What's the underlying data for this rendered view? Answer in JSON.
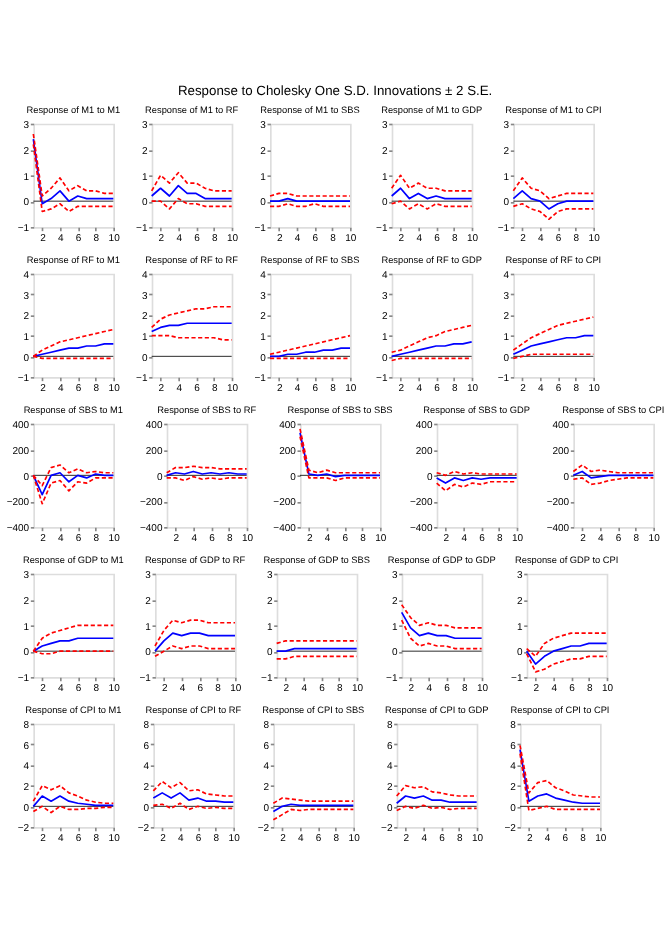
{
  "chart_data": [
    {
      "type": "line",
      "title": "Response of M1 to M1",
      "annotations": [
        "Response to Cholesky One S.D. Innovations ± 2 S.E."
      ],
      "x": [
        1,
        2,
        3,
        4,
        5,
        6,
        7,
        8,
        9,
        10
      ],
      "xlim": [
        1,
        10
      ],
      "xticks": [
        2,
        4,
        6,
        8,
        10
      ],
      "ylim": [
        -1,
        3
      ],
      "yticks": [
        -1,
        0,
        1,
        2,
        3
      ],
      "ref_lines": [
        {
          "axis": "y",
          "value": 0,
          "color": "#000000"
        }
      ],
      "series": [
        {
          "color": "#0000ff",
          "line_style": "solid",
          "values": [
            2.4,
            -0.1,
            0.1,
            0.4,
            0,
            0.2,
            0.1,
            0.1,
            0.1,
            0.1
          ]
        },
        {
          "color": "#ff0000",
          "line_style": "dashed",
          "values": [
            2.6,
            0.2,
            0.5,
            0.9,
            0.4,
            0.6,
            0.4,
            0.4,
            0.3,
            0.3
          ]
        },
        {
          "color": "#ff0000",
          "line_style": "dashed",
          "values": [
            2.2,
            -0.4,
            -0.3,
            -0.1,
            -0.4,
            -0.2,
            -0.2,
            -0.2,
            -0.2,
            -0.2
          ]
        }
      ]
    },
    {
      "type": "line",
      "title": "Response of M1 to RF",
      "x": [
        1,
        2,
        3,
        4,
        5,
        6,
        7,
        8,
        9,
        10
      ],
      "xlim": [
        1,
        10
      ],
      "xticks": [
        2,
        4,
        6,
        8,
        10
      ],
      "ylim": [
        -1,
        3
      ],
      "yticks": [
        -1,
        0,
        1,
        2,
        3
      ],
      "ref_lines": [
        {
          "axis": "y",
          "value": 0,
          "color": "#000000"
        }
      ],
      "series": [
        {
          "color": "#0000ff",
          "line_style": "solid",
          "values": [
            0.2,
            0.5,
            0.2,
            0.6,
            0.3,
            0.3,
            0.1,
            0.1,
            0.1,
            0.1
          ]
        },
        {
          "color": "#ff0000",
          "line_style": "dashed",
          "values": [
            0.4,
            1.0,
            0.7,
            1.1,
            0.7,
            0.7,
            0.5,
            0.4,
            0.4,
            0.4
          ]
        },
        {
          "color": "#ff0000",
          "line_style": "dashed",
          "values": [
            0,
            0,
            -0.3,
            0.1,
            -0.1,
            -0.1,
            -0.2,
            -0.2,
            -0.2,
            -0.2
          ]
        }
      ]
    },
    {
      "type": "line",
      "title": "Response of M1 to SBS",
      "x": [
        1,
        2,
        3,
        4,
        5,
        6,
        7,
        8,
        9,
        10
      ],
      "xlim": [
        1,
        10
      ],
      "xticks": [
        2,
        4,
        6,
        8,
        10
      ],
      "ylim": [
        -1,
        3
      ],
      "yticks": [
        -1,
        0,
        1,
        2,
        3
      ],
      "ref_lines": [
        {
          "axis": "y",
          "value": 0,
          "color": "#000000"
        }
      ],
      "series": [
        {
          "color": "#0000ff",
          "line_style": "solid",
          "values": [
            0,
            0,
            0.1,
            0,
            0,
            0,
            0,
            0,
            0,
            0
          ]
        },
        {
          "color": "#ff0000",
          "line_style": "dashed",
          "values": [
            0.2,
            0.3,
            0.3,
            0.2,
            0.2,
            0.2,
            0.2,
            0.2,
            0.2,
            0.2
          ]
        },
        {
          "color": "#ff0000",
          "line_style": "dashed",
          "values": [
            -0.2,
            -0.2,
            -0.1,
            -0.2,
            -0.2,
            -0.1,
            -0.2,
            -0.2,
            -0.2,
            -0.2
          ]
        }
      ]
    },
    {
      "type": "line",
      "title": "Response of M1 to GDP",
      "x": [
        1,
        2,
        3,
        4,
        5,
        6,
        7,
        8,
        9,
        10
      ],
      "xlim": [
        1,
        10
      ],
      "xticks": [
        2,
        4,
        6,
        8,
        10
      ],
      "ylim": [
        -1,
        3
      ],
      "yticks": [
        -1,
        0,
        1,
        2,
        3
      ],
      "ref_lines": [
        {
          "axis": "y",
          "value": 0,
          "color": "#000000"
        }
      ],
      "series": [
        {
          "color": "#0000ff",
          "line_style": "solid",
          "values": [
            0.2,
            0.5,
            0.1,
            0.3,
            0.1,
            0.2,
            0.1,
            0.1,
            0.1,
            0.1
          ]
        },
        {
          "color": "#ff0000",
          "line_style": "dashed",
          "values": [
            0.5,
            1.0,
            0.5,
            0.7,
            0.5,
            0.5,
            0.4,
            0.4,
            0.4,
            0.4
          ]
        },
        {
          "color": "#ff0000",
          "line_style": "dashed",
          "values": [
            -0.1,
            0,
            -0.3,
            -0.1,
            -0.3,
            -0.1,
            -0.2,
            -0.2,
            -0.2,
            -0.2
          ]
        }
      ]
    },
    {
      "type": "line",
      "title": "Response of M1 to CPI",
      "x": [
        1,
        2,
        3,
        4,
        5,
        6,
        7,
        8,
        9,
        10
      ],
      "xlim": [
        1,
        10
      ],
      "xticks": [
        2,
        4,
        6,
        8,
        10
      ],
      "ylim": [
        -1,
        3
      ],
      "yticks": [
        -1,
        0,
        1,
        2,
        3
      ],
      "ref_lines": [
        {
          "axis": "y",
          "value": 0,
          "color": "#000000"
        }
      ],
      "series": [
        {
          "color": "#0000ff",
          "line_style": "solid",
          "values": [
            0.1,
            0.4,
            0.1,
            0,
            -0.3,
            -0.1,
            0,
            0,
            0,
            0
          ]
        },
        {
          "color": "#ff0000",
          "line_style": "dashed",
          "values": [
            0.4,
            0.9,
            0.5,
            0.4,
            0.1,
            0.2,
            0.3,
            0.3,
            0.3,
            0.3
          ]
        },
        {
          "color": "#ff0000",
          "line_style": "dashed",
          "values": [
            -0.2,
            -0.1,
            -0.3,
            -0.4,
            -0.7,
            -0.4,
            -0.3,
            -0.3,
            -0.3,
            -0.3
          ]
        }
      ]
    },
    {
      "type": "line",
      "title": "Response of RF to M1",
      "x": [
        1,
        2,
        3,
        4,
        5,
        6,
        7,
        8,
        9,
        10
      ],
      "xlim": [
        1,
        10
      ],
      "xticks": [
        2,
        4,
        6,
        8,
        10
      ],
      "ylim": [
        -1,
        4
      ],
      "yticks": [
        -1,
        0,
        1,
        2,
        3,
        4
      ],
      "ref_lines": [
        {
          "axis": "y",
          "value": 0,
          "color": "#000000"
        }
      ],
      "series": [
        {
          "color": "#0000ff",
          "line_style": "solid",
          "values": [
            0,
            0.1,
            0.2,
            0.3,
            0.4,
            0.4,
            0.5,
            0.5,
            0.6,
            0.6
          ]
        },
        {
          "color": "#ff0000",
          "line_style": "dashed",
          "values": [
            0,
            0.3,
            0.5,
            0.7,
            0.8,
            0.9,
            1.0,
            1.1,
            1.2,
            1.3
          ]
        },
        {
          "color": "#ff0000",
          "line_style": "dashed",
          "values": [
            0,
            -0.1,
            -0.1,
            -0.1,
            -0.1,
            -0.1,
            -0.1,
            -0.1,
            -0.1,
            -0.1
          ]
        }
      ]
    },
    {
      "type": "line",
      "title": "Response of RF to RF",
      "x": [
        1,
        2,
        3,
        4,
        5,
        6,
        7,
        8,
        9,
        10
      ],
      "xlim": [
        1,
        10
      ],
      "xticks": [
        2,
        4,
        6,
        8,
        10
      ],
      "ylim": [
        -1,
        4
      ],
      "yticks": [
        -1,
        0,
        1,
        2,
        3,
        4
      ],
      "ref_lines": [
        {
          "axis": "y",
          "value": 0,
          "color": "#000000"
        }
      ],
      "series": [
        {
          "color": "#0000ff",
          "line_style": "solid",
          "values": [
            1.2,
            1.4,
            1.5,
            1.5,
            1.6,
            1.6,
            1.6,
            1.6,
            1.6,
            1.6
          ]
        },
        {
          "color": "#ff0000",
          "line_style": "dashed",
          "values": [
            1.4,
            1.8,
            2.0,
            2.1,
            2.2,
            2.3,
            2.3,
            2.4,
            2.4,
            2.4
          ]
        },
        {
          "color": "#ff0000",
          "line_style": "dashed",
          "values": [
            1.0,
            1.0,
            1.0,
            0.9,
            0.9,
            0.9,
            0.9,
            0.9,
            0.8,
            0.8
          ]
        }
      ]
    },
    {
      "type": "line",
      "title": "Response of RF to SBS",
      "x": [
        1,
        2,
        3,
        4,
        5,
        6,
        7,
        8,
        9,
        10
      ],
      "xlim": [
        1,
        10
      ],
      "xticks": [
        2,
        4,
        6,
        8,
        10
      ],
      "ylim": [
        -1,
        4
      ],
      "yticks": [
        -1,
        0,
        1,
        2,
        3,
        4
      ],
      "ref_lines": [
        {
          "axis": "y",
          "value": 0,
          "color": "#000000"
        }
      ],
      "series": [
        {
          "color": "#0000ff",
          "line_style": "solid",
          "values": [
            0,
            0,
            0.1,
            0.1,
            0.2,
            0.2,
            0.3,
            0.3,
            0.4,
            0.4
          ]
        },
        {
          "color": "#ff0000",
          "line_style": "dashed",
          "values": [
            0.1,
            0.2,
            0.3,
            0.4,
            0.5,
            0.6,
            0.7,
            0.8,
            0.9,
            1.0
          ]
        },
        {
          "color": "#ff0000",
          "line_style": "dashed",
          "values": [
            -0.1,
            -0.1,
            -0.1,
            -0.1,
            -0.1,
            -0.1,
            -0.1,
            -0.1,
            -0.1,
            -0.1
          ]
        }
      ]
    },
    {
      "type": "line",
      "title": "Response of RF to GDP",
      "x": [
        1,
        2,
        3,
        4,
        5,
        6,
        7,
        8,
        9,
        10
      ],
      "xlim": [
        1,
        10
      ],
      "xticks": [
        2,
        4,
        6,
        8,
        10
      ],
      "ylim": [
        -1,
        4
      ],
      "yticks": [
        -1,
        0,
        1,
        2,
        3,
        4
      ],
      "ref_lines": [
        {
          "axis": "y",
          "value": 0,
          "color": "#000000"
        }
      ],
      "series": [
        {
          "color": "#0000ff",
          "line_style": "solid",
          "values": [
            0,
            0.1,
            0.2,
            0.3,
            0.4,
            0.5,
            0.5,
            0.6,
            0.6,
            0.7
          ]
        },
        {
          "color": "#ff0000",
          "line_style": "dashed",
          "values": [
            0.2,
            0.3,
            0.5,
            0.7,
            0.9,
            1.0,
            1.2,
            1.3,
            1.4,
            1.5
          ]
        },
        {
          "color": "#ff0000",
          "line_style": "dashed",
          "values": [
            -0.2,
            -0.1,
            -0.1,
            -0.1,
            -0.1,
            -0.1,
            -0.1,
            -0.1,
            -0.1,
            -0.1
          ]
        }
      ]
    },
    {
      "type": "line",
      "title": "Response of RF to CPI",
      "x": [
        1,
        2,
        3,
        4,
        5,
        6,
        7,
        8,
        9,
        10
      ],
      "xlim": [
        1,
        10
      ],
      "xticks": [
        2,
        4,
        6,
        8,
        10
      ],
      "ylim": [
        -1,
        4
      ],
      "yticks": [
        -1,
        0,
        1,
        2,
        3,
        4
      ],
      "ref_lines": [
        {
          "axis": "y",
          "value": 0,
          "color": "#000000"
        }
      ],
      "series": [
        {
          "color": "#0000ff",
          "line_style": "solid",
          "values": [
            0.1,
            0.3,
            0.5,
            0.6,
            0.7,
            0.8,
            0.9,
            0.9,
            1.0,
            1.0
          ]
        },
        {
          "color": "#ff0000",
          "line_style": "dashed",
          "values": [
            0.3,
            0.6,
            0.9,
            1.1,
            1.3,
            1.5,
            1.6,
            1.7,
            1.8,
            1.9
          ]
        },
        {
          "color": "#ff0000",
          "line_style": "dashed",
          "values": [
            -0.1,
            0,
            0.1,
            0.1,
            0.1,
            0.1,
            0.1,
            0.1,
            0.1,
            0.1
          ]
        }
      ]
    },
    {
      "type": "line",
      "title": "Response of SBS to M1",
      "x": [
        1,
        2,
        3,
        4,
        5,
        6,
        7,
        8,
        9,
        10
      ],
      "xlim": [
        1,
        10
      ],
      "xticks": [
        2,
        4,
        6,
        8,
        10
      ],
      "ylim": [
        -400,
        400
      ],
      "yticks": [
        -400,
        -200,
        0,
        200,
        400
      ],
      "ref_lines": [
        {
          "axis": "y",
          "value": 0,
          "color": "#000000"
        }
      ],
      "series": [
        {
          "color": "#0000ff",
          "line_style": "solid",
          "values": [
            0,
            -150,
            0,
            20,
            -50,
            0,
            -20,
            10,
            0,
            0
          ]
        },
        {
          "color": "#ff0000",
          "line_style": "dashed",
          "values": [
            0,
            -80,
            60,
            80,
            20,
            50,
            20,
            30,
            20,
            20
          ]
        },
        {
          "color": "#ff0000",
          "line_style": "dashed",
          "values": [
            0,
            -220,
            -60,
            -40,
            -120,
            -50,
            -60,
            -20,
            -20,
            -20
          ]
        }
      ]
    },
    {
      "type": "line",
      "title": "Response of SBS to RF",
      "x": [
        1,
        2,
        3,
        4,
        5,
        6,
        7,
        8,
        9,
        10
      ],
      "xlim": [
        1,
        10
      ],
      "xticks": [
        2,
        4,
        6,
        8,
        10
      ],
      "ylim": [
        -400,
        400
      ],
      "yticks": [
        -400,
        -200,
        0,
        200,
        400
      ],
      "ref_lines": [
        {
          "axis": "y",
          "value": 0,
          "color": "#000000"
        }
      ],
      "series": [
        {
          "color": "#0000ff",
          "line_style": "solid",
          "values": [
            0,
            20,
            10,
            30,
            10,
            20,
            10,
            20,
            10,
            10
          ]
        },
        {
          "color": "#ff0000",
          "line_style": "dashed",
          "values": [
            20,
            60,
            60,
            70,
            60,
            60,
            50,
            50,
            50,
            50
          ]
        },
        {
          "color": "#ff0000",
          "line_style": "dashed",
          "values": [
            -20,
            -20,
            -40,
            -10,
            -30,
            -20,
            -30,
            -20,
            -20,
            -20
          ]
        }
      ]
    },
    {
      "type": "line",
      "title": "Response of SBS to SBS",
      "x": [
        1,
        2,
        3,
        4,
        5,
        6,
        7,
        8,
        9,
        10
      ],
      "xlim": [
        1,
        10
      ],
      "xticks": [
        2,
        4,
        6,
        8,
        10
      ],
      "ylim": [
        -400,
        400
      ],
      "yticks": [
        -400,
        -200,
        0,
        200,
        400
      ],
      "ref_lines": [
        {
          "axis": "y",
          "value": 0,
          "color": "#000000"
        }
      ],
      "series": [
        {
          "color": "#0000ff",
          "line_style": "solid",
          "values": [
            330,
            10,
            0,
            10,
            -10,
            0,
            0,
            0,
            0,
            0
          ]
        },
        {
          "color": "#ff0000",
          "line_style": "dashed",
          "values": [
            360,
            40,
            20,
            40,
            20,
            20,
            20,
            20,
            20,
            20
          ]
        },
        {
          "color": "#ff0000",
          "line_style": "dashed",
          "values": [
            300,
            -20,
            -20,
            -20,
            -40,
            -20,
            -20,
            -20,
            -20,
            -20
          ]
        }
      ]
    },
    {
      "type": "line",
      "title": "Response of SBS to GDP",
      "x": [
        1,
        2,
        3,
        4,
        5,
        6,
        7,
        8,
        9,
        10
      ],
      "xlim": [
        1,
        10
      ],
      "xticks": [
        2,
        4,
        6,
        8,
        10
      ],
      "ylim": [
        -400,
        400
      ],
      "yticks": [
        -400,
        -200,
        0,
        200,
        400
      ],
      "ref_lines": [
        {
          "axis": "y",
          "value": 0,
          "color": "#000000"
        }
      ],
      "series": [
        {
          "color": "#0000ff",
          "line_style": "solid",
          "values": [
            -20,
            -60,
            -20,
            -40,
            -20,
            -30,
            -20,
            -20,
            -20,
            -20
          ]
        },
        {
          "color": "#ff0000",
          "line_style": "dashed",
          "values": [
            20,
            0,
            30,
            10,
            20,
            10,
            10,
            10,
            10,
            10
          ]
        },
        {
          "color": "#ff0000",
          "line_style": "dashed",
          "values": [
            -60,
            -120,
            -70,
            -90,
            -60,
            -70,
            -50,
            -50,
            -50,
            -50
          ]
        }
      ]
    },
    {
      "type": "line",
      "title": "Response of SBS to CPI",
      "x": [
        1,
        2,
        3,
        4,
        5,
        6,
        7,
        8,
        9,
        10
      ],
      "xlim": [
        1,
        10
      ],
      "xticks": [
        2,
        4,
        6,
        8,
        10
      ],
      "ylim": [
        -400,
        400
      ],
      "yticks": [
        -400,
        -200,
        0,
        200,
        400
      ],
      "ref_lines": [
        {
          "axis": "y",
          "value": 0,
          "color": "#000000"
        }
      ],
      "series": [
        {
          "color": "#0000ff",
          "line_style": "solid",
          "values": [
            0,
            30,
            -20,
            -10,
            0,
            0,
            0,
            0,
            0,
            0
          ]
        },
        {
          "color": "#ff0000",
          "line_style": "dashed",
          "values": [
            30,
            80,
            30,
            40,
            30,
            20,
            20,
            20,
            20,
            20
          ]
        },
        {
          "color": "#ff0000",
          "line_style": "dashed",
          "values": [
            -30,
            -20,
            -70,
            -60,
            -40,
            -30,
            -20,
            -20,
            -20,
            -20
          ]
        }
      ]
    },
    {
      "type": "line",
      "title": "Response of GDP to M1",
      "x": [
        1,
        2,
        3,
        4,
        5,
        6,
        7,
        8,
        9,
        10
      ],
      "xlim": [
        1,
        10
      ],
      "xticks": [
        2,
        4,
        6,
        8,
        10
      ],
      "ylim": [
        -1,
        3
      ],
      "yticks": [
        -1,
        0,
        1,
        2,
        3
      ],
      "ref_lines": [
        {
          "axis": "y",
          "value": 0,
          "color": "#000000"
        }
      ],
      "series": [
        {
          "color": "#0000ff",
          "line_style": "solid",
          "values": [
            0,
            0.2,
            0.3,
            0.4,
            0.4,
            0.5,
            0.5,
            0.5,
            0.5,
            0.5
          ]
        },
        {
          "color": "#ff0000",
          "line_style": "dashed",
          "values": [
            0,
            0.5,
            0.7,
            0.8,
            0.9,
            1.0,
            1.0,
            1.0,
            1.0,
            1.0
          ]
        },
        {
          "color": "#ff0000",
          "line_style": "dashed",
          "values": [
            0,
            -0.1,
            -0.1,
            0,
            0,
            0,
            0,
            0,
            0,
            0
          ]
        }
      ]
    },
    {
      "type": "line",
      "title": "Response of GDP to RF",
      "x": [
        1,
        2,
        3,
        4,
        5,
        6,
        7,
        8,
        9,
        10
      ],
      "xlim": [
        1,
        10
      ],
      "xticks": [
        2,
        4,
        6,
        8,
        10
      ],
      "ylim": [
        -1,
        3
      ],
      "yticks": [
        -1,
        0,
        1,
        2,
        3
      ],
      "ref_lines": [
        {
          "axis": "y",
          "value": 0,
          "color": "#000000"
        }
      ],
      "series": [
        {
          "color": "#0000ff",
          "line_style": "solid",
          "values": [
            0,
            0.4,
            0.7,
            0.6,
            0.7,
            0.7,
            0.6,
            0.6,
            0.6,
            0.6
          ]
        },
        {
          "color": "#ff0000",
          "line_style": "dashed",
          "values": [
            0.2,
            0.8,
            1.2,
            1.1,
            1.2,
            1.2,
            1.1,
            1.1,
            1.1,
            1.1
          ]
        },
        {
          "color": "#ff0000",
          "line_style": "dashed",
          "values": [
            -0.2,
            0,
            0.2,
            0.1,
            0.2,
            0.2,
            0.1,
            0.1,
            0.1,
            0.1
          ]
        }
      ]
    },
    {
      "type": "line",
      "title": "Response of GDP to SBS",
      "x": [
        1,
        2,
        3,
        4,
        5,
        6,
        7,
        8,
        9,
        10
      ],
      "xlim": [
        1,
        10
      ],
      "xticks": [
        2,
        4,
        6,
        8,
        10
      ],
      "ylim": [
        -1,
        3
      ],
      "yticks": [
        -1,
        0,
        1,
        2,
        3
      ],
      "ref_lines": [
        {
          "axis": "y",
          "value": 0,
          "color": "#000000"
        }
      ],
      "series": [
        {
          "color": "#0000ff",
          "line_style": "solid",
          "values": [
            0,
            0,
            0.1,
            0.1,
            0.1,
            0.1,
            0.1,
            0.1,
            0.1,
            0.1
          ]
        },
        {
          "color": "#ff0000",
          "line_style": "dashed",
          "values": [
            0.3,
            0.4,
            0.4,
            0.4,
            0.4,
            0.4,
            0.4,
            0.4,
            0.4,
            0.4
          ]
        },
        {
          "color": "#ff0000",
          "line_style": "dashed",
          "values": [
            -0.3,
            -0.3,
            -0.2,
            -0.2,
            -0.2,
            -0.2,
            -0.2,
            -0.2,
            -0.2,
            -0.2
          ]
        }
      ]
    },
    {
      "type": "line",
      "title": "Response of GDP to GDP",
      "x": [
        1,
        2,
        3,
        4,
        5,
        6,
        7,
        8,
        9,
        10
      ],
      "xlim": [
        1,
        10
      ],
      "xticks": [
        2,
        4,
        6,
        8,
        10
      ],
      "ylim": [
        -1,
        3
      ],
      "yticks": [
        -1,
        0,
        1,
        2,
        3
      ],
      "ref_lines": [
        {
          "axis": "y",
          "value": 0,
          "color": "#000000"
        }
      ],
      "series": [
        {
          "color": "#0000ff",
          "line_style": "solid",
          "values": [
            1.5,
            0.9,
            0.6,
            0.7,
            0.6,
            0.6,
            0.5,
            0.5,
            0.5,
            0.5
          ]
        },
        {
          "color": "#ff0000",
          "line_style": "dashed",
          "values": [
            1.8,
            1.3,
            1.0,
            1.1,
            1.0,
            1.0,
            0.9,
            0.9,
            0.9,
            0.9
          ]
        },
        {
          "color": "#ff0000",
          "line_style": "dashed",
          "values": [
            1.2,
            0.5,
            0.2,
            0.3,
            0.2,
            0.2,
            0.1,
            0.1,
            0.1,
            0.1
          ]
        }
      ]
    },
    {
      "type": "line",
      "title": "Response of GDP to CPI",
      "x": [
        1,
        2,
        3,
        4,
        5,
        6,
        7,
        8,
        9,
        10
      ],
      "xlim": [
        1,
        10
      ],
      "xticks": [
        2,
        4,
        6,
        8,
        10
      ],
      "ylim": [
        -1,
        3
      ],
      "yticks": [
        -1,
        0,
        1,
        2,
        3
      ],
      "ref_lines": [
        {
          "axis": "y",
          "value": 0,
          "color": "#000000"
        }
      ],
      "series": [
        {
          "color": "#0000ff",
          "line_style": "solid",
          "values": [
            0,
            -0.5,
            -0.2,
            0,
            0.1,
            0.2,
            0.2,
            0.3,
            0.3,
            0.3
          ]
        },
        {
          "color": "#ff0000",
          "line_style": "dashed",
          "values": [
            0.1,
            -0.2,
            0.3,
            0.5,
            0.6,
            0.7,
            0.7,
            0.7,
            0.7,
            0.7
          ]
        },
        {
          "color": "#ff0000",
          "line_style": "dashed",
          "values": [
            -0.1,
            -0.8,
            -0.7,
            -0.5,
            -0.4,
            -0.3,
            -0.3,
            -0.2,
            -0.2,
            -0.2
          ]
        }
      ]
    },
    {
      "type": "line",
      "title": "Response of CPI to M1",
      "x": [
        1,
        2,
        3,
        4,
        5,
        6,
        7,
        8,
        9,
        10
      ],
      "xlim": [
        1,
        10
      ],
      "xticks": [
        2,
        4,
        6,
        8,
        10
      ],
      "ylim": [
        -2,
        8
      ],
      "yticks": [
        -2,
        0,
        2,
        4,
        6,
        8
      ],
      "ref_lines": [
        {
          "axis": "y",
          "value": 0,
          "color": "#000000"
        }
      ],
      "series": [
        {
          "color": "#0000ff",
          "line_style": "solid",
          "values": [
            0,
            1.0,
            0.5,
            1.0,
            0.5,
            0.3,
            0.2,
            0.1,
            0.1,
            0.1
          ]
        },
        {
          "color": "#ff0000",
          "line_style": "dashed",
          "values": [
            0.5,
            2.0,
            1.6,
            2.0,
            1.3,
            1.0,
            0.6,
            0.4,
            0.3,
            0.3
          ]
        },
        {
          "color": "#ff0000",
          "line_style": "dashed",
          "values": [
            -0.5,
            0,
            -0.6,
            0,
            -0.3,
            -0.3,
            -0.2,
            -0.2,
            -0.1,
            -0.1
          ]
        }
      ]
    },
    {
      "type": "line",
      "title": "Response of CPI to RF",
      "x": [
        1,
        2,
        3,
        4,
        5,
        6,
        7,
        8,
        9,
        10
      ],
      "xlim": [
        1,
        10
      ],
      "xticks": [
        2,
        4,
        6,
        8,
        10
      ],
      "ylim": [
        -2,
        8
      ],
      "yticks": [
        -2,
        0,
        2,
        4,
        6,
        8
      ],
      "ref_lines": [
        {
          "axis": "y",
          "value": 0,
          "color": "#000000"
        }
      ],
      "series": [
        {
          "color": "#0000ff",
          "line_style": "solid",
          "values": [
            0.8,
            1.3,
            0.8,
            1.3,
            0.6,
            0.8,
            0.5,
            0.5,
            0.4,
            0.4
          ]
        },
        {
          "color": "#ff0000",
          "line_style": "dashed",
          "values": [
            1.5,
            2.4,
            1.8,
            2.3,
            1.5,
            1.6,
            1.2,
            1.1,
            1.0,
            1.0
          ]
        },
        {
          "color": "#ff0000",
          "line_style": "dashed",
          "values": [
            0.1,
            0.2,
            -0.2,
            0.3,
            -0.3,
            0,
            -0.2,
            -0.1,
            -0.2,
            -0.2
          ]
        }
      ]
    },
    {
      "type": "line",
      "title": "Response of CPI to SBS",
      "x": [
        1,
        2,
        3,
        4,
        5,
        6,
        7,
        8,
        9,
        10
      ],
      "xlim": [
        1,
        10
      ],
      "xticks": [
        2,
        4,
        6,
        8,
        10
      ],
      "ylim": [
        -2,
        8
      ],
      "yticks": [
        -2,
        0,
        2,
        4,
        6,
        8
      ],
      "ref_lines": [
        {
          "axis": "y",
          "value": 0,
          "color": "#000000"
        }
      ],
      "series": [
        {
          "color": "#0000ff",
          "line_style": "solid",
          "values": [
            -0.5,
            0,
            0.2,
            0.1,
            0.1,
            0.1,
            0.1,
            0.1,
            0.1,
            0.1
          ]
        },
        {
          "color": "#ff0000",
          "line_style": "dashed",
          "values": [
            0.3,
            0.8,
            0.7,
            0.6,
            0.5,
            0.5,
            0.5,
            0.5,
            0.5,
            0.5
          ]
        },
        {
          "color": "#ff0000",
          "line_style": "dashed",
          "values": [
            -1.3,
            -0.8,
            -0.3,
            -0.4,
            -0.3,
            -0.3,
            -0.3,
            -0.3,
            -0.3,
            -0.3
          ]
        }
      ]
    },
    {
      "type": "line",
      "title": "Response of CPI to GDP",
      "x": [
        1,
        2,
        3,
        4,
        5,
        6,
        7,
        8,
        9,
        10
      ],
      "xlim": [
        1,
        10
      ],
      "xticks": [
        2,
        4,
        6,
        8,
        10
      ],
      "ylim": [
        -2,
        8
      ],
      "yticks": [
        -2,
        0,
        2,
        4,
        6,
        8
      ],
      "ref_lines": [
        {
          "axis": "y",
          "value": 0,
          "color": "#000000"
        }
      ],
      "series": [
        {
          "color": "#0000ff",
          "line_style": "solid",
          "values": [
            0.3,
            1.0,
            0.8,
            1.0,
            0.6,
            0.6,
            0.4,
            0.4,
            0.4,
            0.4
          ]
        },
        {
          "color": "#ff0000",
          "line_style": "dashed",
          "values": [
            1.0,
            2.0,
            1.8,
            1.9,
            1.4,
            1.3,
            1.1,
            1.0,
            1.0,
            1.0
          ]
        },
        {
          "color": "#ff0000",
          "line_style": "dashed",
          "values": [
            -0.4,
            0,
            -0.2,
            0.1,
            -0.2,
            -0.1,
            -0.3,
            -0.2,
            -0.2,
            -0.2
          ]
        }
      ]
    },
    {
      "type": "line",
      "title": "Response of CPI to CPI",
      "x": [
        1,
        2,
        3,
        4,
        5,
        6,
        7,
        8,
        9,
        10
      ],
      "xlim": [
        1,
        10
      ],
      "xticks": [
        2,
        4,
        6,
        8,
        10
      ],
      "ylim": [
        -2,
        8
      ],
      "yticks": [
        -2,
        0,
        2,
        4,
        6,
        8
      ],
      "ref_lines": [
        {
          "axis": "y",
          "value": 0,
          "color": "#000000"
        }
      ],
      "series": [
        {
          "color": "#0000ff",
          "line_style": "solid",
          "values": [
            5.5,
            0.5,
            1.0,
            1.2,
            0.8,
            0.6,
            0.4,
            0.3,
            0.3,
            0.3
          ]
        },
        {
          "color": "#ff0000",
          "line_style": "dashed",
          "values": [
            5.9,
            1.3,
            2.3,
            2.5,
            1.8,
            1.5,
            1.1,
            1.0,
            0.9,
            0.9
          ]
        },
        {
          "color": "#ff0000",
          "line_style": "dashed",
          "values": [
            5.1,
            -0.4,
            -0.2,
            0,
            -0.3,
            -0.3,
            -0.3,
            -0.3,
            -0.3,
            -0.3
          ]
        }
      ]
    }
  ]
}
